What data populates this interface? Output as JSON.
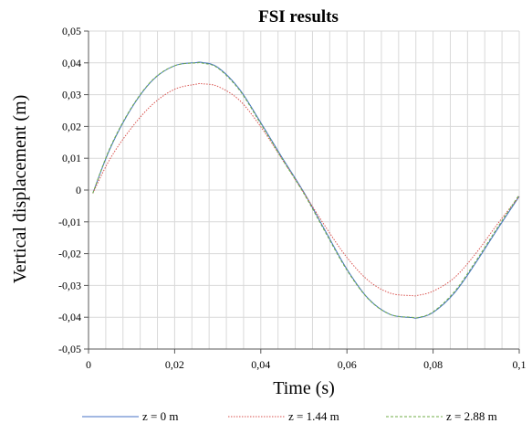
{
  "chart_data": {
    "type": "line",
    "title": "FSI results",
    "xlabel": "Time (s)",
    "ylabel": "Vertical displacement (m)",
    "xlim": [
      0,
      0.1
    ],
    "ylim": [
      -0.05,
      0.05
    ],
    "grid": true,
    "x_ticks": [
      "0",
      "0,02",
      "0,04",
      "0,06",
      "0,08",
      "0,1"
    ],
    "y_ticks": [
      "0,05",
      "0,04",
      "0,03",
      "0,02",
      "0,01",
      "0",
      "-0,01",
      "-0,02",
      "-0,03",
      "-0,04",
      "-0,05"
    ],
    "legend_position": "bottom",
    "x": [
      0.001,
      0.005,
      0.01,
      0.015,
      0.02,
      0.025,
      0.0265,
      0.03,
      0.035,
      0.04,
      0.045,
      0.05,
      0.055,
      0.06,
      0.065,
      0.07,
      0.075,
      0.0765,
      0.08,
      0.085,
      0.09,
      0.095,
      0.1
    ],
    "series": [
      {
        "name": "z = 0 m",
        "color": "#4472c4",
        "style": "solid",
        "values": [
          -0.001,
          0.013,
          0.0258,
          0.0347,
          0.0391,
          0.0401,
          0.0401,
          0.0386,
          0.0318,
          0.0212,
          0.0101,
          -0.0007,
          -0.0129,
          -0.0249,
          -0.0342,
          -0.0391,
          -0.0401,
          -0.0402,
          -0.0385,
          -0.0323,
          -0.0227,
          -0.0122,
          -0.002
        ]
      },
      {
        "name": "z = 1.44 m",
        "color": "#d9534f",
        "style": "dotted",
        "values": [
          -0.001,
          0.0098,
          0.0196,
          0.0271,
          0.0317,
          0.0333,
          0.0334,
          0.0326,
          0.0283,
          0.0199,
          0.0096,
          -0.0009,
          -0.0115,
          -0.0212,
          -0.0285,
          -0.0324,
          -0.0332,
          -0.0331,
          -0.0318,
          -0.0275,
          -0.0198,
          -0.0106,
          -0.002
        ]
      },
      {
        "name": "z = 2.88 m",
        "color": "#70ad47",
        "style": "dashed",
        "values": [
          -0.001,
          0.0133,
          0.026,
          0.0348,
          0.0391,
          0.04,
          0.0399,
          0.0384,
          0.0315,
          0.0208,
          0.0097,
          -0.0011,
          -0.0133,
          -0.0252,
          -0.0343,
          -0.0391,
          -0.04,
          -0.0401,
          -0.0383,
          -0.0319,
          -0.0222,
          -0.0117,
          -0.0015
        ]
      }
    ]
  }
}
